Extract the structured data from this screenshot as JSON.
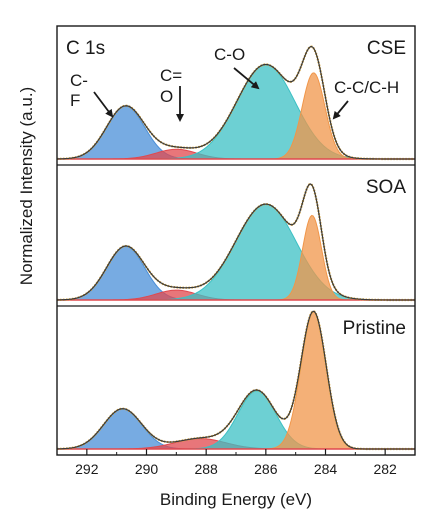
{
  "chart_data": {
    "type": "area",
    "xlabel": "Binding Energy (eV)",
    "ylabel": "Normalized Intensity (a.u.)",
    "xlim": [
      293,
      281
    ],
    "x_reversed": true,
    "xticks": [
      292,
      290,
      288,
      286,
      284,
      282
    ],
    "grid": false,
    "region_label": "C 1s",
    "colors": {
      "cf": "#4a8fd8",
      "co_double": "#e0484e",
      "c_o": "#3cc0c4",
      "cc": "#f0964a",
      "envelope": "#3a3a3a",
      "data_points": "#d8a437"
    },
    "annotations": [
      {
        "text": "C-",
        "sub": "F",
        "target": "cf"
      },
      {
        "text": "C=",
        "sub": "O",
        "target": "co_double"
      },
      {
        "text": "C-O",
        "target": "c_o"
      },
      {
        "text": "C-C/C-H",
        "target": "cc"
      }
    ],
    "panels": [
      {
        "label": "CSE",
        "components": [
          {
            "key": "cf",
            "center": 290.7,
            "fwhm": 1.5,
            "height": 0.38
          },
          {
            "key": "co_double",
            "center": 289.0,
            "fwhm": 1.6,
            "height": 0.07
          },
          {
            "key": "c_o",
            "center": 286.0,
            "fwhm": 2.3,
            "height": 0.68
          },
          {
            "key": "cc",
            "center": 284.4,
            "fwhm": 0.9,
            "height": 0.62
          }
        ]
      },
      {
        "label": "SOA",
        "components": [
          {
            "key": "cf",
            "center": 290.7,
            "fwhm": 1.5,
            "height": 0.38
          },
          {
            "key": "co_double",
            "center": 289.0,
            "fwhm": 1.6,
            "height": 0.07
          },
          {
            "key": "c_o",
            "center": 286.0,
            "fwhm": 2.4,
            "height": 0.68
          },
          {
            "key": "cc",
            "center": 284.45,
            "fwhm": 0.75,
            "height": 0.6
          }
        ]
      },
      {
        "label": "Pristine",
        "components": [
          {
            "key": "cf",
            "center": 290.8,
            "fwhm": 1.5,
            "height": 0.27
          },
          {
            "key": "co_double",
            "center": 288.2,
            "fwhm": 2.0,
            "height": 0.07
          },
          {
            "key": "c_o",
            "center": 286.3,
            "fwhm": 1.5,
            "height": 0.39
          },
          {
            "key": "cc",
            "center": 284.4,
            "fwhm": 1.0,
            "height": 0.92
          }
        ]
      }
    ]
  }
}
